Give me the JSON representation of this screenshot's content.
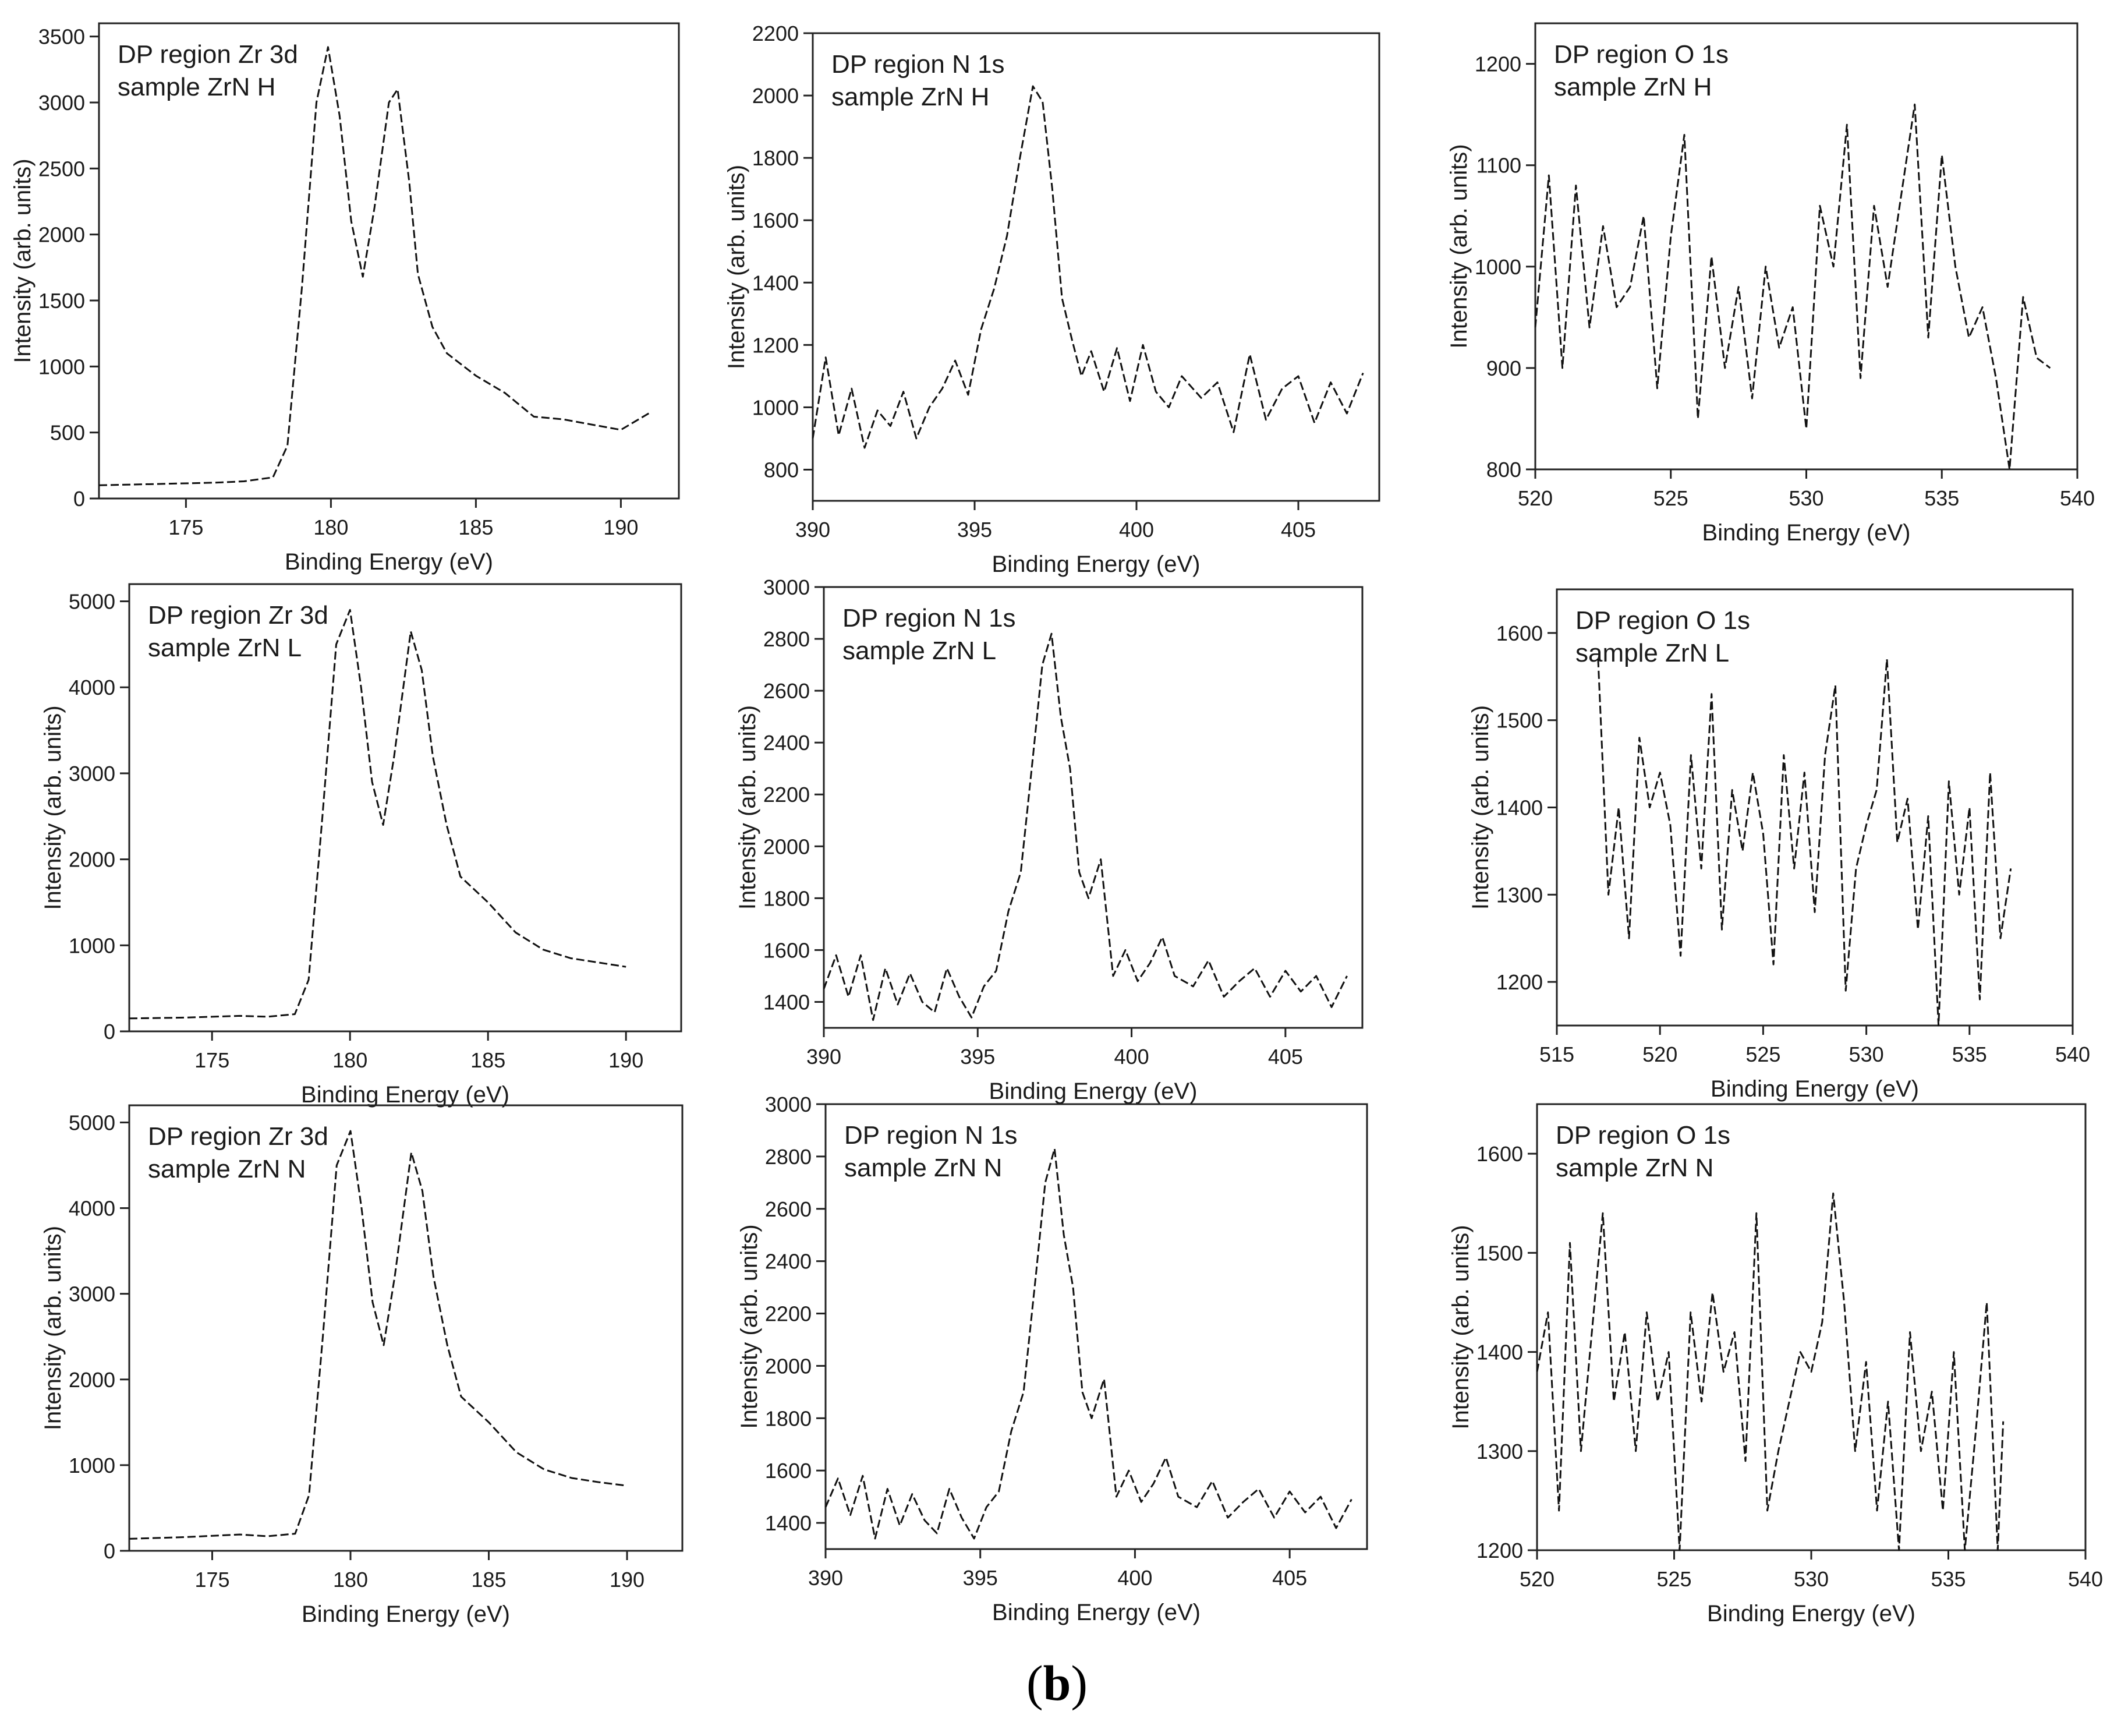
{
  "figure": {
    "panel_label_open": "(",
    "panel_label_letter": "b",
    "panel_label_close": ")"
  },
  "chart_data": [
    {
      "type": "line",
      "title": "DP region Zr 3d",
      "subtitle": "sample ZrN H",
      "xlabel": "Binding Energy (eV)",
      "ylabel": "Intensity (arb. units)",
      "xlim": [
        172,
        192
      ],
      "ylim": [
        0,
        3600
      ],
      "xticks": [
        175,
        180,
        185,
        190
      ],
      "yticks": [
        0,
        500,
        1000,
        1500,
        2000,
        2500,
        3000,
        3500
      ],
      "series": [
        {
          "name": "ZrN H Zr 3d",
          "x": [
            172,
            174,
            176,
            177,
            178,
            178.5,
            179,
            179.5,
            179.9,
            180.3,
            180.7,
            181.1,
            181.5,
            182,
            182.3,
            182.7,
            183,
            183.5,
            184,
            185,
            186,
            187,
            188,
            189,
            190,
            191
          ],
          "y": [
            100,
            110,
            120,
            130,
            160,
            400,
            1600,
            3000,
            3420,
            2900,
            2100,
            1680,
            2200,
            3000,
            3100,
            2400,
            1700,
            1300,
            1100,
            930,
            800,
            620,
            600,
            560,
            520,
            650
          ]
        }
      ]
    },
    {
      "type": "line",
      "title": "DP region N 1s",
      "subtitle": "sample ZrN H",
      "xlabel": "Binding Energy (eV)",
      "ylabel": "Intensity (arb. units)",
      "xlim": [
        390,
        407.5
      ],
      "ylim": [
        700,
        2200
      ],
      "xticks": [
        390,
        395,
        400,
        405
      ],
      "yticks": [
        800,
        1000,
        1200,
        1400,
        1600,
        1800,
        2000,
        2200
      ],
      "series": [
        {
          "name": "ZrN H N 1s",
          "x": [
            390,
            390.4,
            390.8,
            391.2,
            391.6,
            392,
            392.4,
            392.8,
            393.2,
            393.6,
            394,
            394.4,
            394.8,
            395.2,
            395.6,
            396,
            396.4,
            396.8,
            397.1,
            397.4,
            397.7,
            398,
            398.3,
            398.6,
            399,
            399.4,
            399.8,
            400.2,
            400.6,
            401,
            401.4,
            402,
            402.5,
            403,
            403.5,
            404,
            404.5,
            405,
            405.5,
            406,
            406.5,
            407
          ],
          "y": [
            900,
            1160,
            910,
            1060,
            870,
            990,
            940,
            1050,
            900,
            1000,
            1060,
            1150,
            1040,
            1250,
            1380,
            1550,
            1800,
            2030,
            1980,
            1700,
            1350,
            1220,
            1100,
            1180,
            1050,
            1190,
            1020,
            1200,
            1050,
            1000,
            1100,
            1030,
            1080,
            920,
            1170,
            960,
            1060,
            1100,
            950,
            1080,
            980,
            1110
          ]
        }
      ]
    },
    {
      "type": "line",
      "title": "DP region O 1s",
      "subtitle": "sample ZrN H",
      "xlabel": "Binding Energy (eV)",
      "ylabel": "Intensity (arb. units)",
      "xlim": [
        520,
        540
      ],
      "ylim": [
        800,
        1240
      ],
      "xticks": [
        520,
        525,
        530,
        535,
        540
      ],
      "yticks": [
        800,
        900,
        1000,
        1100,
        1200
      ],
      "series": [
        {
          "name": "ZrN H O 1s",
          "x": [
            520,
            520.5,
            521,
            521.5,
            522,
            522.5,
            523,
            523.5,
            524,
            524.5,
            525,
            525.5,
            526,
            526.5,
            527,
            527.5,
            528,
            528.5,
            529,
            529.5,
            530,
            530.5,
            531,
            531.5,
            532,
            532.5,
            533,
            533.5,
            534,
            534.5,
            535,
            535.5,
            536,
            536.5,
            537,
            537.5,
            538,
            538.5,
            539
          ],
          "y": [
            940,
            1090,
            900,
            1080,
            940,
            1040,
            960,
            980,
            1050,
            880,
            1030,
            1130,
            850,
            1010,
            900,
            980,
            870,
            1000,
            920,
            960,
            840,
            1060,
            1000,
            1140,
            890,
            1060,
            980,
            1070,
            1160,
            930,
            1110,
            1000,
            930,
            960,
            890,
            800,
            970,
            910,
            900
          ]
        }
      ]
    },
    {
      "type": "line",
      "title": "DP region Zr 3d",
      "subtitle": "sample ZrN L",
      "xlabel": "Binding Energy (eV)",
      "ylabel": "Intensity (arb. units)",
      "xlim": [
        172,
        192
      ],
      "ylim": [
        0,
        5200
      ],
      "xticks": [
        175,
        180,
        185,
        190
      ],
      "yticks": [
        0,
        1000,
        2000,
        3000,
        4000,
        5000
      ],
      "series": [
        {
          "name": "ZrN L Zr 3d",
          "x": [
            172,
            174,
            176,
            177,
            178,
            178.5,
            179,
            179.5,
            180,
            180.4,
            180.8,
            181.2,
            181.6,
            182.2,
            182.6,
            183,
            183.5,
            184,
            185,
            186,
            187,
            188,
            189,
            190
          ],
          "y": [
            150,
            160,
            180,
            170,
            200,
            600,
            2500,
            4500,
            4900,
            4000,
            2900,
            2400,
            3200,
            4650,
            4200,
            3200,
            2400,
            1800,
            1500,
            1150,
            950,
            850,
            800,
            750
          ]
        }
      ]
    },
    {
      "type": "line",
      "title": "DP region N 1s",
      "subtitle": "sample ZrN L",
      "xlabel": "Binding Energy (eV)",
      "ylabel": "Intensity (arb. units)",
      "xlim": [
        390,
        407.5
      ],
      "ylim": [
        1300,
        3000
      ],
      "xticks": [
        390,
        395,
        400,
        405
      ],
      "yticks": [
        1400,
        1600,
        1800,
        2000,
        2200,
        2400,
        2600,
        2800,
        3000
      ],
      "series": [
        {
          "name": "ZrN L N 1s",
          "x": [
            390,
            390.4,
            390.8,
            391.2,
            391.6,
            392,
            392.4,
            392.8,
            393.2,
            393.6,
            394,
            394.4,
            394.8,
            395.2,
            395.6,
            396,
            396.4,
            396.8,
            397.1,
            397.4,
            397.7,
            398,
            398.3,
            398.6,
            399,
            399.4,
            399.8,
            400.2,
            400.6,
            401,
            401.4,
            402,
            402.5,
            403,
            403.5,
            404,
            404.5,
            405,
            405.5,
            406,
            406.5,
            407
          ],
          "y": [
            1450,
            1580,
            1420,
            1580,
            1330,
            1530,
            1390,
            1510,
            1400,
            1360,
            1530,
            1420,
            1340,
            1460,
            1520,
            1750,
            1900,
            2350,
            2700,
            2820,
            2500,
            2300,
            1900,
            1800,
            1950,
            1500,
            1600,
            1480,
            1550,
            1650,
            1500,
            1460,
            1560,
            1420,
            1480,
            1530,
            1420,
            1520,
            1440,
            1500,
            1380,
            1500
          ]
        }
      ]
    },
    {
      "type": "line",
      "title": "DP region O 1s",
      "subtitle": "sample ZrN L",
      "xlabel": "Binding Energy (eV)",
      "ylabel": "Intensity (arb. units)",
      "xlim": [
        515,
        540
      ],
      "ylim": [
        1150,
        1650
      ],
      "xticks": [
        515,
        520,
        525,
        530,
        535,
        540
      ],
      "yticks": [
        1200,
        1300,
        1400,
        1500,
        1600
      ],
      "series": [
        {
          "name": "ZrN L O 1s",
          "x": [
            517,
            517.5,
            518,
            518.5,
            519,
            519.5,
            520,
            520.5,
            521,
            521.5,
            522,
            522.5,
            523,
            523.5,
            524,
            524.5,
            525,
            525.5,
            526,
            526.5,
            527,
            527.5,
            528,
            528.5,
            529,
            529.5,
            530,
            530.5,
            531,
            531.5,
            532,
            532.5,
            533,
            533.5,
            534,
            534.5,
            535,
            535.5,
            536,
            536.5,
            537
          ],
          "y": [
            1570,
            1300,
            1400,
            1250,
            1480,
            1400,
            1440,
            1380,
            1230,
            1460,
            1330,
            1530,
            1260,
            1420,
            1350,
            1440,
            1370,
            1220,
            1460,
            1330,
            1440,
            1280,
            1460,
            1540,
            1190,
            1330,
            1380,
            1420,
            1570,
            1360,
            1410,
            1260,
            1390,
            1150,
            1430,
            1300,
            1400,
            1180,
            1440,
            1250,
            1330
          ]
        }
      ]
    },
    {
      "type": "line",
      "title": "DP region Zr 3d",
      "subtitle": "sample ZrN N",
      "xlabel": "Binding Energy (eV)",
      "ylabel": "Intensity (arb. units)",
      "xlim": [
        172,
        192
      ],
      "ylim": [
        0,
        5200
      ],
      "xticks": [
        175,
        180,
        185,
        190
      ],
      "yticks": [
        0,
        1000,
        2000,
        3000,
        4000,
        5000
      ],
      "series": [
        {
          "name": "ZrN N Zr 3d",
          "x": [
            172,
            174,
            176,
            177,
            178,
            178.5,
            179,
            179.5,
            180,
            180.4,
            180.8,
            181.2,
            181.6,
            182.2,
            182.6,
            183,
            183.5,
            184,
            185,
            186,
            187,
            188,
            189,
            190
          ],
          "y": [
            140,
            160,
            190,
            170,
            200,
            650,
            2500,
            4500,
            4900,
            4000,
            2900,
            2400,
            3200,
            4650,
            4200,
            3200,
            2400,
            1800,
            1500,
            1150,
            950,
            850,
            800,
            760
          ]
        }
      ]
    },
    {
      "type": "line",
      "title": "DP region N 1s",
      "subtitle": "sample ZrN N",
      "xlabel": "Binding Energy (eV)",
      "ylabel": "Intensity (arb. units)",
      "xlim": [
        390,
        407.5
      ],
      "ylim": [
        1300,
        3000
      ],
      "xticks": [
        390,
        395,
        400,
        405
      ],
      "yticks": [
        1400,
        1600,
        1800,
        2000,
        2200,
        2400,
        2600,
        2800,
        3000
      ],
      "series": [
        {
          "name": "ZrN N N 1s",
          "x": [
            390,
            390.4,
            390.8,
            391.2,
            391.6,
            392,
            392.4,
            392.8,
            393.2,
            393.6,
            394,
            394.4,
            394.8,
            395.2,
            395.6,
            396,
            396.4,
            396.8,
            397.1,
            397.4,
            397.7,
            398,
            398.3,
            398.6,
            399,
            399.4,
            399.8,
            400.2,
            400.6,
            401,
            401.4,
            402,
            402.5,
            403,
            403.5,
            404,
            404.5,
            405,
            405.5,
            406,
            406.5,
            407
          ],
          "y": [
            1460,
            1570,
            1430,
            1580,
            1340,
            1530,
            1390,
            1510,
            1410,
            1360,
            1530,
            1420,
            1340,
            1460,
            1520,
            1750,
            1900,
            2350,
            2700,
            2830,
            2500,
            2300,
            1900,
            1800,
            1950,
            1500,
            1600,
            1480,
            1550,
            1650,
            1500,
            1460,
            1560,
            1420,
            1480,
            1530,
            1420,
            1520,
            1440,
            1500,
            1380,
            1490
          ]
        }
      ]
    },
    {
      "type": "line",
      "title": "DP region O 1s",
      "subtitle": "sample ZrN N",
      "xlabel": "Binding Energy (eV)",
      "ylabel": "Intensity (arb. units)",
      "xlim": [
        520,
        540
      ],
      "ylim": [
        1200,
        1650
      ],
      "xticks": [
        520,
        525,
        530,
        535,
        540
      ],
      "yticks": [
        1200,
        1300,
        1400,
        1500,
        1600
      ],
      "series": [
        {
          "name": "ZrN N O 1s",
          "x": [
            520,
            520.4,
            520.8,
            521.2,
            521.6,
            522,
            522.4,
            522.8,
            523.2,
            523.6,
            524,
            524.4,
            524.8,
            525.2,
            525.6,
            526,
            526.4,
            526.8,
            527.2,
            527.6,
            528,
            528.4,
            528.8,
            529.2,
            529.6,
            530,
            530.4,
            530.8,
            531.2,
            531.6,
            532,
            532.4,
            532.8,
            533.2,
            533.6,
            534,
            534.4,
            534.8,
            535.2,
            535.6,
            536,
            536.4,
            536.8,
            537
          ],
          "y": [
            1380,
            1440,
            1240,
            1510,
            1300,
            1420,
            1540,
            1350,
            1420,
            1300,
            1440,
            1350,
            1400,
            1200,
            1440,
            1350,
            1460,
            1380,
            1420,
            1290,
            1540,
            1240,
            1300,
            1350,
            1400,
            1380,
            1430,
            1560,
            1450,
            1300,
            1390,
            1240,
            1350,
            1200,
            1420,
            1300,
            1360,
            1240,
            1400,
            1200,
            1320,
            1450,
            1200,
            1330
          ]
        }
      ]
    }
  ]
}
